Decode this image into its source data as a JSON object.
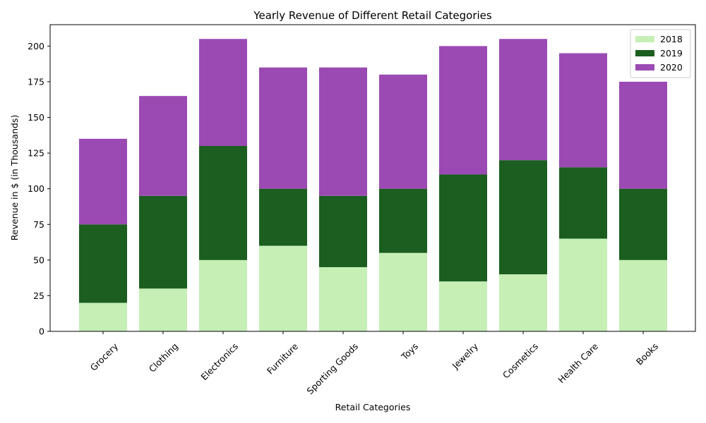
{
  "chart_data": {
    "type": "bar",
    "stacked": true,
    "title": "Yearly Revenue of Different Retail Categories",
    "xlabel": "Retail Categories",
    "ylabel": "Revenue in $ (in Thousands)",
    "ylim": [
      0,
      215
    ],
    "yticks": [
      0,
      25,
      50,
      75,
      100,
      125,
      150,
      175,
      200
    ],
    "grid": false,
    "legend_position": "top-right",
    "categories": [
      "Grocery",
      "Clothing",
      "Electronics",
      "Furniture",
      "Sporting Goods",
      "Toys",
      "Jewelry",
      "Cosmetics",
      "Health Care",
      "Books"
    ],
    "series": [
      {
        "name": "2018",
        "color": "#c5efb5",
        "values": [
          20,
          30,
          50,
          60,
          45,
          55,
          35,
          40,
          65,
          50
        ]
      },
      {
        "name": "2019",
        "color": "#1b5e20",
        "values": [
          55,
          65,
          80,
          40,
          50,
          45,
          75,
          80,
          50,
          50
        ]
      },
      {
        "name": "2020",
        "color": "#9b4ab3",
        "values": [
          60,
          70,
          75,
          85,
          90,
          80,
          90,
          85,
          80,
          75
        ]
      }
    ]
  }
}
